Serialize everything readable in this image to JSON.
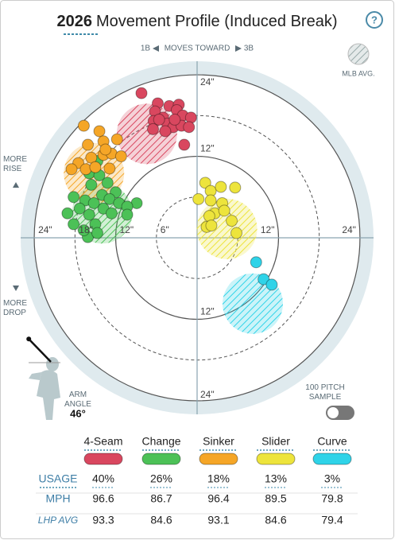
{
  "header": {
    "year": "2026",
    "title": "Movement Profile (Induced Break)",
    "help": "?"
  },
  "direction": {
    "left": "1B",
    "middle": "MOVES TOWARD",
    "right": "3B"
  },
  "mlb_avg_label": "MLB AVG.",
  "more_rise": "MORE RISE",
  "more_drop": "MORE DROP",
  "arm_angle": {
    "label": "ARM ANGLE",
    "value": 46,
    "value_label": "46°"
  },
  "sample_toggle": "100 PITCH SAMPLE",
  "chart_data": {
    "type": "scatter",
    "xlim": [
      -26,
      26
    ],
    "ylim": [
      -26,
      26
    ],
    "xticks": [
      {
        "value": -24,
        "label": "24\""
      },
      {
        "value": -18,
        "label": "18\""
      },
      {
        "value": -12,
        "label": "12\""
      },
      {
        "value": -6,
        "label": "6\""
      },
      {
        "value": 12,
        "label": "12\""
      },
      {
        "value": 24,
        "label": "24\""
      }
    ],
    "yticks": [
      {
        "value": 24,
        "label": "24\""
      },
      {
        "value": 12,
        "label": "12\""
      },
      {
        "value": -12,
        "label": "12\""
      },
      {
        "value": -24,
        "label": "24\""
      }
    ],
    "series": [
      {
        "name": "4-Seam",
        "color": "#d9475f",
        "x": [
          -8.2,
          -5.8,
          -4.1,
          -2.7,
          -3.0,
          -2.1,
          -0.9,
          -6.2,
          -5.0,
          -6.4,
          -4.4,
          -3.5,
          -2.3,
          -1.2,
          -4.7,
          -6.5,
          -1.9,
          -5.6,
          -3.3
        ],
        "y": [
          21.3,
          19.8,
          19.4,
          19.6,
          18.8,
          18.0,
          17.7,
          18.6,
          17.7,
          17.2,
          16.8,
          16.3,
          16.5,
          16.3,
          15.7,
          16.0,
          13.7,
          17.4,
          17.4
        ],
        "mlb_avg": {
          "x": -7.4,
          "y": 15.3
        }
      },
      {
        "name": "Change",
        "color": "#4cc157",
        "x": [
          -14.7,
          -13.2,
          -15.9,
          -14.4,
          -15.6,
          -12.0,
          -14.0,
          -18.2,
          -16.5,
          -15.2,
          -12.9,
          -11.5,
          -8.9,
          -10.3,
          -17.3,
          -13.8,
          -19.1,
          -15.9,
          -12.6,
          -10.3,
          -18.2,
          -15.0,
          -16.1,
          -14.7,
          -16.7
        ],
        "y": [
          11.3,
          8.1,
          9.5,
          9.2,
          7.8,
          6.7,
          6.3,
          6.0,
          5.5,
          5.1,
          5.7,
          5.1,
          5.1,
          4.6,
          4.3,
          4.3,
          3.6,
          3.4,
          3.6,
          3.4,
          2.0,
          2.0,
          0.1,
          0.7,
          1.1
        ],
        "mlb_avg": {
          "x": -14.0,
          "y": 3.6
        }
      },
      {
        "name": "Sinker",
        "color": "#f5a627",
        "x": [
          -16.7,
          -14.4,
          -16.1,
          -13.8,
          -11.8,
          -15.6,
          -13.8,
          -12.6,
          -11.2,
          -17.5,
          -18.5,
          -16.4,
          -15.0,
          -12.9,
          -13.5
        ],
        "y": [
          16.5,
          15.7,
          13.7,
          14.2,
          14.5,
          11.8,
          12.2,
          12.4,
          12.0,
          11.0,
          10.1,
          10.1,
          10.4,
          10.2,
          13.0
        ],
        "mlb_avg": {
          "x": -15.2,
          "y": 9.5
        }
      },
      {
        "name": "Slider",
        "color": "#ede43c",
        "x": [
          1.2,
          2.0,
          3.5,
          5.6,
          0.2,
          2.0,
          3.7,
          2.6,
          4.0,
          1.8,
          5.1,
          1.4,
          2.1,
          5.8
        ],
        "y": [
          8.1,
          6.9,
          7.5,
          7.4,
          5.7,
          5.5,
          5.1,
          3.6,
          4.0,
          3.2,
          2.5,
          1.6,
          1.8,
          0.7
        ],
        "mlb_avg": {
          "x": 4.4,
          "y": 1.3
        }
      },
      {
        "name": "Curve",
        "color": "#2fd3e8",
        "x": [
          8.7,
          9.8,
          11.0
        ],
        "y": [
          -3.6,
          -6.1,
          -6.9
        ],
        "mlb_avg": {
          "x": 8.2,
          "y": -9.7
        }
      }
    ]
  },
  "table": {
    "rows": [
      {
        "label": "USAGE",
        "values": [
          "40%",
          "26%",
          "18%",
          "13%",
          "3%"
        ]
      },
      {
        "label": "MPH",
        "values": [
          "96.6",
          "86.7",
          "96.4",
          "89.5",
          "79.8"
        ]
      },
      {
        "label": "LHP AVG",
        "values": [
          "93.3",
          "84.6",
          "93.1",
          "84.6",
          "79.4"
        ]
      }
    ]
  }
}
